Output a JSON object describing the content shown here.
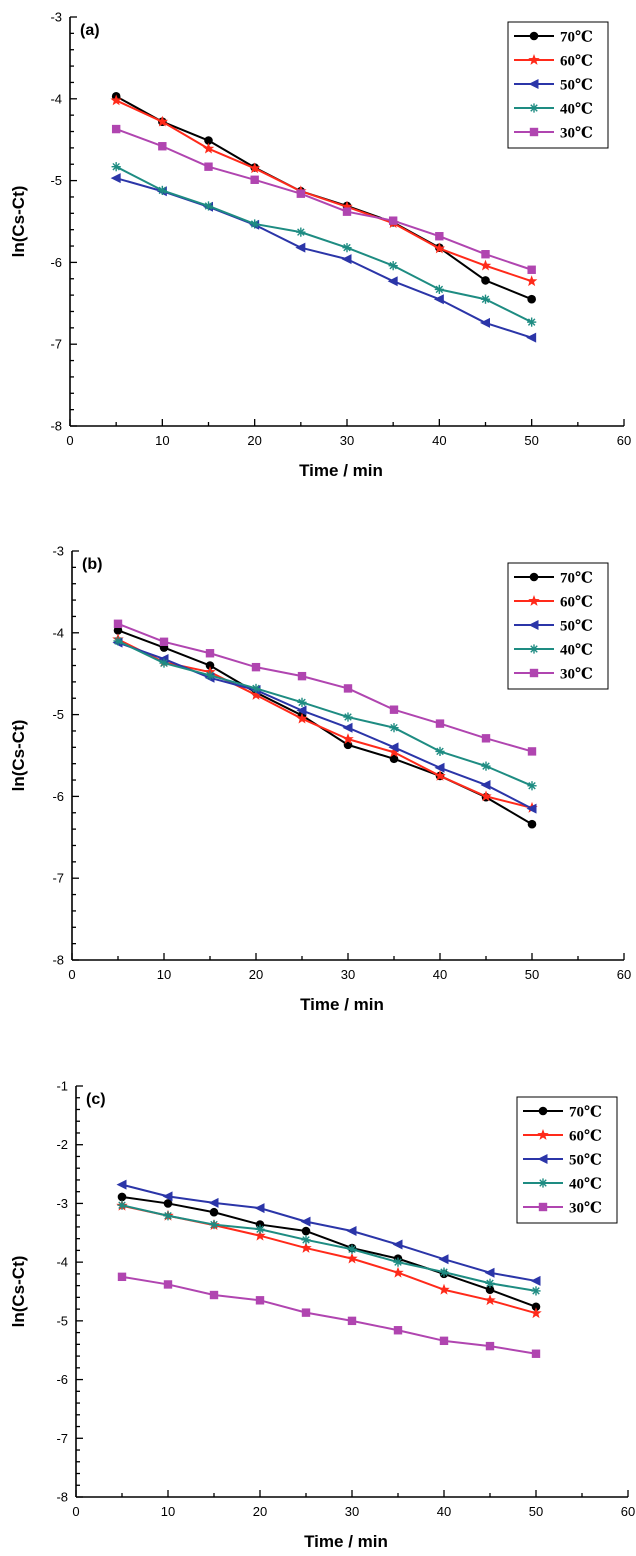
{
  "chart_data": [
    {
      "type": "line",
      "panel": "(a)",
      "xlabel": "Time / min",
      "ylabel": "ln(Cs-Ct)",
      "xlim": [
        0,
        60
      ],
      "ylim": [
        -8,
        -3
      ],
      "xticks": [
        0,
        10,
        20,
        30,
        40,
        50,
        60
      ],
      "yticks": [
        -8,
        -7,
        -6,
        -5,
        -4,
        -3
      ],
      "grid": false,
      "legend_position": "top-right",
      "x": [
        5,
        10,
        15,
        20,
        25,
        30,
        35,
        40,
        45,
        50
      ],
      "series": [
        {
          "name": "70℃",
          "color": "#000000",
          "marker": "circle",
          "values": [
            -3.97,
            -4.28,
            -4.51,
            -4.84,
            -5.13,
            -5.31,
            -5.51,
            -5.82,
            -6.22,
            -6.45
          ]
        },
        {
          "name": "60℃",
          "color": "#ff2a1a",
          "marker": "star",
          "values": [
            -4.02,
            -4.28,
            -4.61,
            -4.85,
            -5.13,
            -5.32,
            -5.52,
            -5.83,
            -6.04,
            -6.23
          ]
        },
        {
          "name": "50℃",
          "color": "#2b35a8",
          "marker": "triangle-left",
          "values": [
            -4.97,
            -5.13,
            -5.32,
            -5.54,
            -5.82,
            -5.96,
            -6.23,
            -6.45,
            -6.74,
            -6.92
          ]
        },
        {
          "name": "40℃",
          "color": "#1e8c82",
          "marker": "asterisk",
          "values": [
            -4.83,
            -5.12,
            -5.31,
            -5.53,
            -5.63,
            -5.82,
            -6.04,
            -6.33,
            -6.45,
            -6.73
          ]
        },
        {
          "name": "30℃",
          "color": "#b045b0",
          "marker": "square",
          "values": [
            -4.37,
            -4.58,
            -4.83,
            -4.99,
            -5.16,
            -5.38,
            -5.49,
            -5.68,
            -5.9,
            -6.09
          ]
        }
      ]
    },
    {
      "type": "line",
      "panel": "(b)",
      "xlabel": "Time / min",
      "ylabel": "ln(Cs-Ct)",
      "xlim": [
        0,
        60
      ],
      "ylim": [
        -8,
        -3
      ],
      "xticks": [
        0,
        10,
        20,
        30,
        40,
        50,
        60
      ],
      "yticks": [
        -8,
        -7,
        -6,
        -5,
        -4,
        -3
      ],
      "grid": false,
      "legend_position": "top-right",
      "x": [
        5,
        10,
        15,
        20,
        25,
        30,
        35,
        40,
        45,
        50
      ],
      "series": [
        {
          "name": "70℃",
          "color": "#000000",
          "marker": "circle",
          "values": [
            -3.97,
            -4.18,
            -4.4,
            -4.73,
            -5.01,
            -5.37,
            -5.54,
            -5.75,
            -6.01,
            -6.34
          ]
        },
        {
          "name": "60℃",
          "color": "#ff2a1a",
          "marker": "star",
          "values": [
            -4.08,
            -4.36,
            -4.48,
            -4.76,
            -5.05,
            -5.3,
            -5.46,
            -5.75,
            -6.0,
            -6.14
          ]
        },
        {
          "name": "50℃",
          "color": "#2b35a8",
          "marker": "triangle-left",
          "values": [
            -4.12,
            -4.32,
            -4.55,
            -4.7,
            -4.95,
            -5.16,
            -5.4,
            -5.65,
            -5.86,
            -6.15
          ]
        },
        {
          "name": "40℃",
          "color": "#1e8c82",
          "marker": "asterisk",
          "values": [
            -4.1,
            -4.37,
            -4.52,
            -4.68,
            -4.85,
            -5.03,
            -5.16,
            -5.45,
            -5.63,
            -5.87
          ]
        },
        {
          "name": "30℃",
          "color": "#b045b0",
          "marker": "square",
          "values": [
            -3.89,
            -4.11,
            -4.25,
            -4.42,
            -4.53,
            -4.68,
            -4.94,
            -5.11,
            -5.29,
            -5.45
          ]
        }
      ]
    },
    {
      "type": "line",
      "panel": "(c)",
      "xlabel": "Time / min",
      "ylabel": "ln(Cs-Ct)",
      "xlim": [
        0,
        60
      ],
      "ylim": [
        -8,
        -1
      ],
      "xticks": [
        0,
        10,
        20,
        30,
        40,
        50,
        60
      ],
      "yticks": [
        -8,
        -7,
        -6,
        -5,
        -4,
        -3,
        -2,
        -1
      ],
      "grid": false,
      "legend_position": "top-right",
      "x": [
        5,
        10,
        15,
        20,
        25,
        30,
        35,
        40,
        45,
        50
      ],
      "series": [
        {
          "name": "70℃",
          "color": "#000000",
          "marker": "circle",
          "values": [
            -2.89,
            -3.0,
            -3.15,
            -3.36,
            -3.47,
            -3.76,
            -3.94,
            -4.2,
            -4.47,
            -4.76
          ]
        },
        {
          "name": "60℃",
          "color": "#ff2a1a",
          "marker": "star",
          "values": [
            -3.04,
            -3.21,
            -3.37,
            -3.55,
            -3.76,
            -3.94,
            -4.18,
            -4.47,
            -4.65,
            -4.87
          ]
        },
        {
          "name": "50℃",
          "color": "#2b35a8",
          "marker": "triangle-left",
          "values": [
            -2.68,
            -2.88,
            -2.99,
            -3.08,
            -3.31,
            -3.47,
            -3.7,
            -3.95,
            -4.18,
            -4.32
          ]
        },
        {
          "name": "40℃",
          "color": "#1e8c82",
          "marker": "asterisk",
          "values": [
            -3.03,
            -3.21,
            -3.36,
            -3.44,
            -3.62,
            -3.78,
            -4.0,
            -4.17,
            -4.36,
            -4.49
          ]
        },
        {
          "name": "30℃",
          "color": "#b045b0",
          "marker": "square",
          "values": [
            -4.25,
            -4.38,
            -4.56,
            -4.65,
            -4.86,
            -5.0,
            -5.16,
            -5.34,
            -5.43,
            -5.56
          ]
        }
      ]
    }
  ]
}
